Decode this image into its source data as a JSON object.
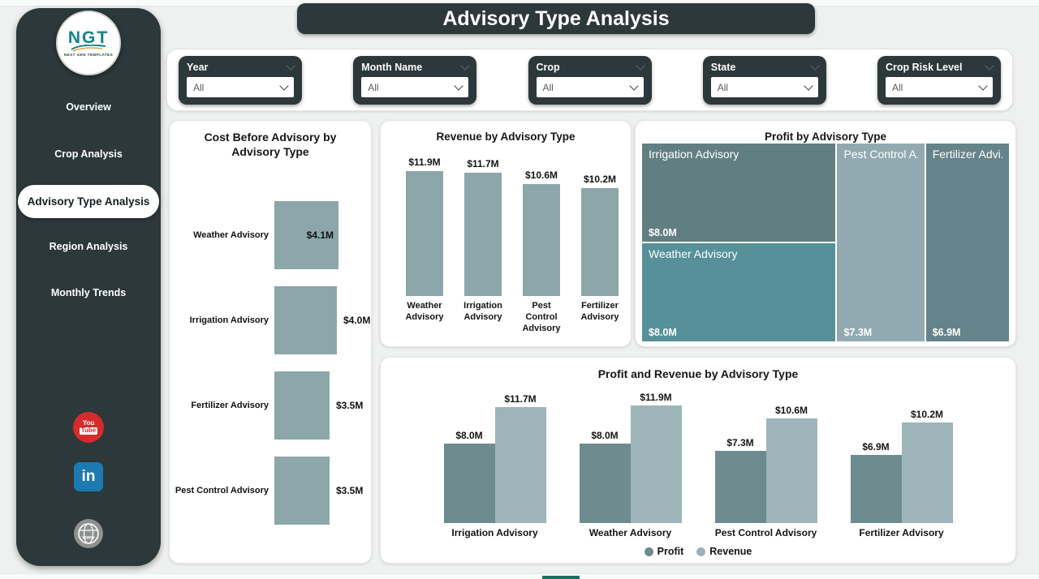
{
  "app": {
    "title": "Advisory Type Analysis"
  },
  "sidebar": {
    "logo": {
      "text": "NGT",
      "subtext": "NEXT GEN TEMPLATES"
    },
    "items": [
      {
        "label": "Overview",
        "active": false
      },
      {
        "label": "Crop Analysis",
        "active": false
      },
      {
        "label": "Advisory Type Analysis",
        "active": true
      },
      {
        "label": "Region Analysis",
        "active": false
      },
      {
        "label": "Monthly Trends",
        "active": false
      }
    ],
    "social": {
      "youtube_lines": [
        "You",
        "Tube"
      ],
      "linkedin_label": "in",
      "website_label": "www"
    }
  },
  "filters": [
    {
      "label": "Year",
      "value": "All"
    },
    {
      "label": "Month Name",
      "value": "All"
    },
    {
      "label": "Crop",
      "value": "All"
    },
    {
      "label": "State",
      "value": "All"
    },
    {
      "label": "Crop Risk Level",
      "value": "All"
    }
  ],
  "colors": {
    "dark": "#2c3839",
    "bar": "#8ca6a9",
    "profit": "#6e8c8f",
    "revenue": "#9db5b8",
    "accent_strip": "#1d6f60"
  },
  "chart_data": [
    {
      "type": "bar",
      "orientation": "horizontal",
      "title": "Cost Before Advisory by Advisory Type",
      "unit": "$M",
      "categories": [
        "Weather Advisory",
        "Irrigation Advisory",
        "Fertilizer Advisory",
        "Pest Control Advisory"
      ],
      "values": [
        4.1,
        4.0,
        3.5,
        3.5
      ],
      "value_labels": [
        "$4.1M",
        "$4.0M",
        "$3.5M",
        "$3.5M"
      ],
      "value_label_positions": [
        "inside",
        "outside",
        "outside",
        "outside"
      ]
    },
    {
      "type": "bar",
      "orientation": "vertical",
      "title": "Revenue by Advisory Type",
      "unit": "$M",
      "categories": [
        "Weather Advisory",
        "Irrigation Advisory",
        "Pest Control Advisory",
        "Fertilizer Advisory"
      ],
      "values": [
        11.9,
        11.7,
        10.6,
        10.2
      ],
      "value_labels": [
        "$11.9M",
        "$11.7M",
        "$10.6M",
        "$10.2M"
      ]
    },
    {
      "type": "treemap",
      "title": "Profit by Advisory Type",
      "unit": "$M",
      "tiles": [
        {
          "category": "Irrigation Advisory",
          "display_label": "Irrigation Advisory",
          "value": 8.0,
          "value_label": "$8.0M",
          "color": "#617f82"
        },
        {
          "category": "Weather Advisory",
          "display_label": "Weather Advisory",
          "value": 8.0,
          "value_label": "$8.0M",
          "color": "#569099"
        },
        {
          "category": "Pest Control Advisory",
          "display_label": "Pest Control A...",
          "value": 7.3,
          "value_label": "$7.3M",
          "color": "#91aab1"
        },
        {
          "category": "Fertilizer Advisory",
          "display_label": "Fertilizer Advi...",
          "value": 6.9,
          "value_label": "$6.9M",
          "color": "#65838a"
        }
      ]
    },
    {
      "type": "bar",
      "orientation": "vertical",
      "grouped": true,
      "title": "Profit and Revenue by Advisory Type",
      "unit": "$M",
      "categories": [
        "Irrigation Advisory",
        "Weather Advisory",
        "Pest Control Advisory",
        "Fertilizer Advisory"
      ],
      "series": [
        {
          "name": "Profit",
          "color": "#6e8c8f",
          "values": [
            8.0,
            8.0,
            7.3,
            6.9
          ],
          "value_labels": [
            "$8.0M",
            "$8.0M",
            "$7.3M",
            "$6.9M"
          ]
        },
        {
          "name": "Revenue",
          "color": "#9db5b8",
          "values": [
            11.7,
            11.9,
            10.6,
            10.2
          ],
          "value_labels": [
            "$11.7M",
            "$11.9M",
            "$10.6M",
            "$10.2M"
          ]
        }
      ],
      "legend_position": "bottom"
    }
  ]
}
